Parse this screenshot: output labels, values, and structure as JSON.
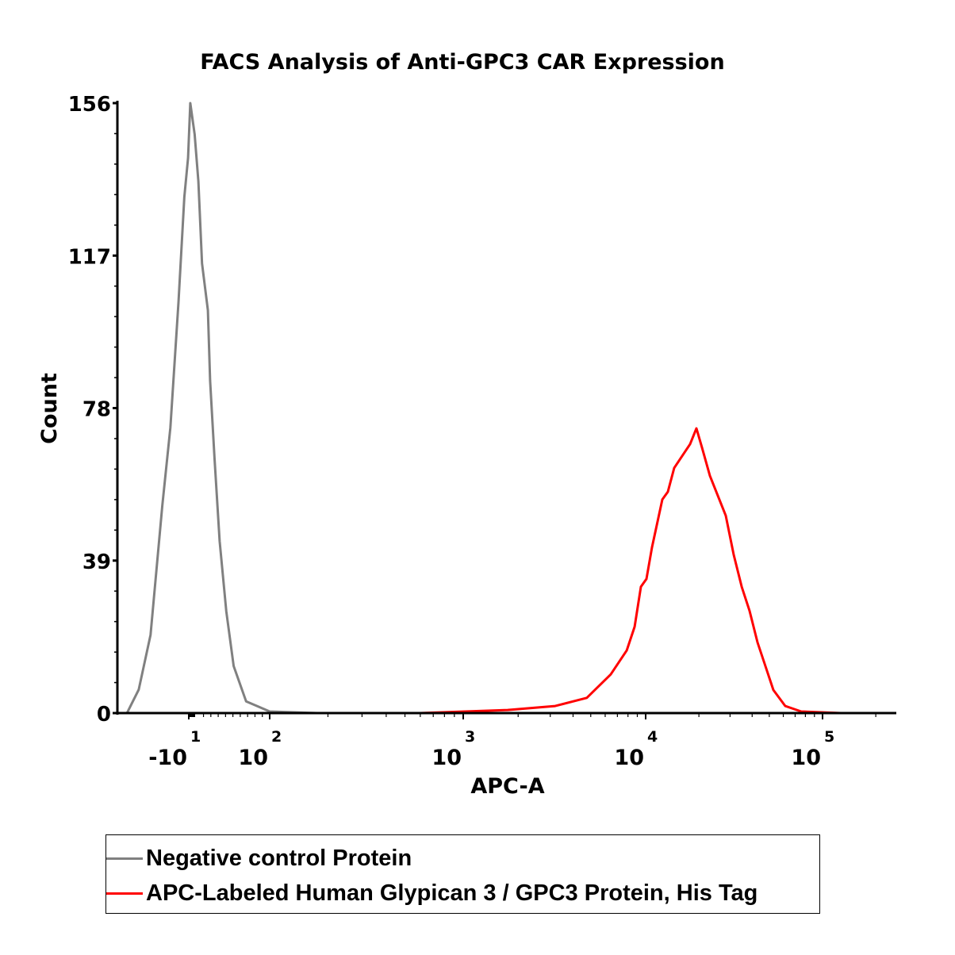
{
  "chart_data": {
    "type": "line",
    "title": "FACS Analysis of Anti-GPC3 CAR Expression",
    "xlabel": "APC-A",
    "ylabel": "Count",
    "xscale": "logicle",
    "ylim": [
      0,
      156
    ],
    "yticks": [
      {
        "value": 0,
        "label": "0"
      },
      {
        "value": 39,
        "label": "39"
      },
      {
        "value": 78,
        "label": "78"
      },
      {
        "value": 117,
        "label": "117"
      },
      {
        "value": 156,
        "label": "156"
      }
    ],
    "xticks": [
      {
        "value": -10,
        "base": "-10",
        "exp": "1"
      },
      {
        "value": 100,
        "base": "10",
        "exp": "2"
      },
      {
        "value": 1000,
        "base": "10",
        "exp": "3"
      },
      {
        "value": 10000,
        "base": "10",
        "exp": "4"
      },
      {
        "value": 100000,
        "base": "10",
        "exp": "5"
      }
    ],
    "legend_position": "bottom",
    "series": [
      {
        "name": "Negative control Protein",
        "color": "#808080",
        "x": [
          -94,
          -78,
          -62,
          -46,
          -35,
          -24,
          -16,
          -11,
          -8,
          -2,
          3,
          8,
          16,
          19,
          25,
          32,
          41,
          51,
          68,
          100,
          176
        ],
        "y": [
          0,
          6,
          20,
          53,
          73,
          105,
          132,
          142,
          156,
          148,
          136,
          115,
          103,
          85,
          65,
          44,
          26,
          12,
          3,
          0.4,
          0
        ]
      },
      {
        "name": "APC-Labeled Human Glypican 3 / GPC3 Protein, His Tag",
        "color": "#ff0000",
        "x": [
          601,
          1751,
          3190,
          4760,
          6440,
          7870,
          8700,
          9420,
          10100,
          10860,
          12420,
          13350,
          14500,
          16070,
          17830,
          19360,
          20800,
          23070,
          25590,
          28380,
          31480,
          34910,
          38650,
          42870,
          47550,
          52740,
          61540,
          75710,
          126800
        ],
        "y": [
          0,
          0.8,
          1.8,
          3.9,
          9.9,
          16,
          22.1,
          32.3,
          34.3,
          42.4,
          54.6,
          56.6,
          62.7,
          65.7,
          68.8,
          72.8,
          68,
          60.7,
          55.6,
          50.5,
          40.4,
          32.3,
          26.2,
          18.1,
          12,
          5.9,
          1.8,
          0.4,
          0
        ]
      }
    ]
  }
}
